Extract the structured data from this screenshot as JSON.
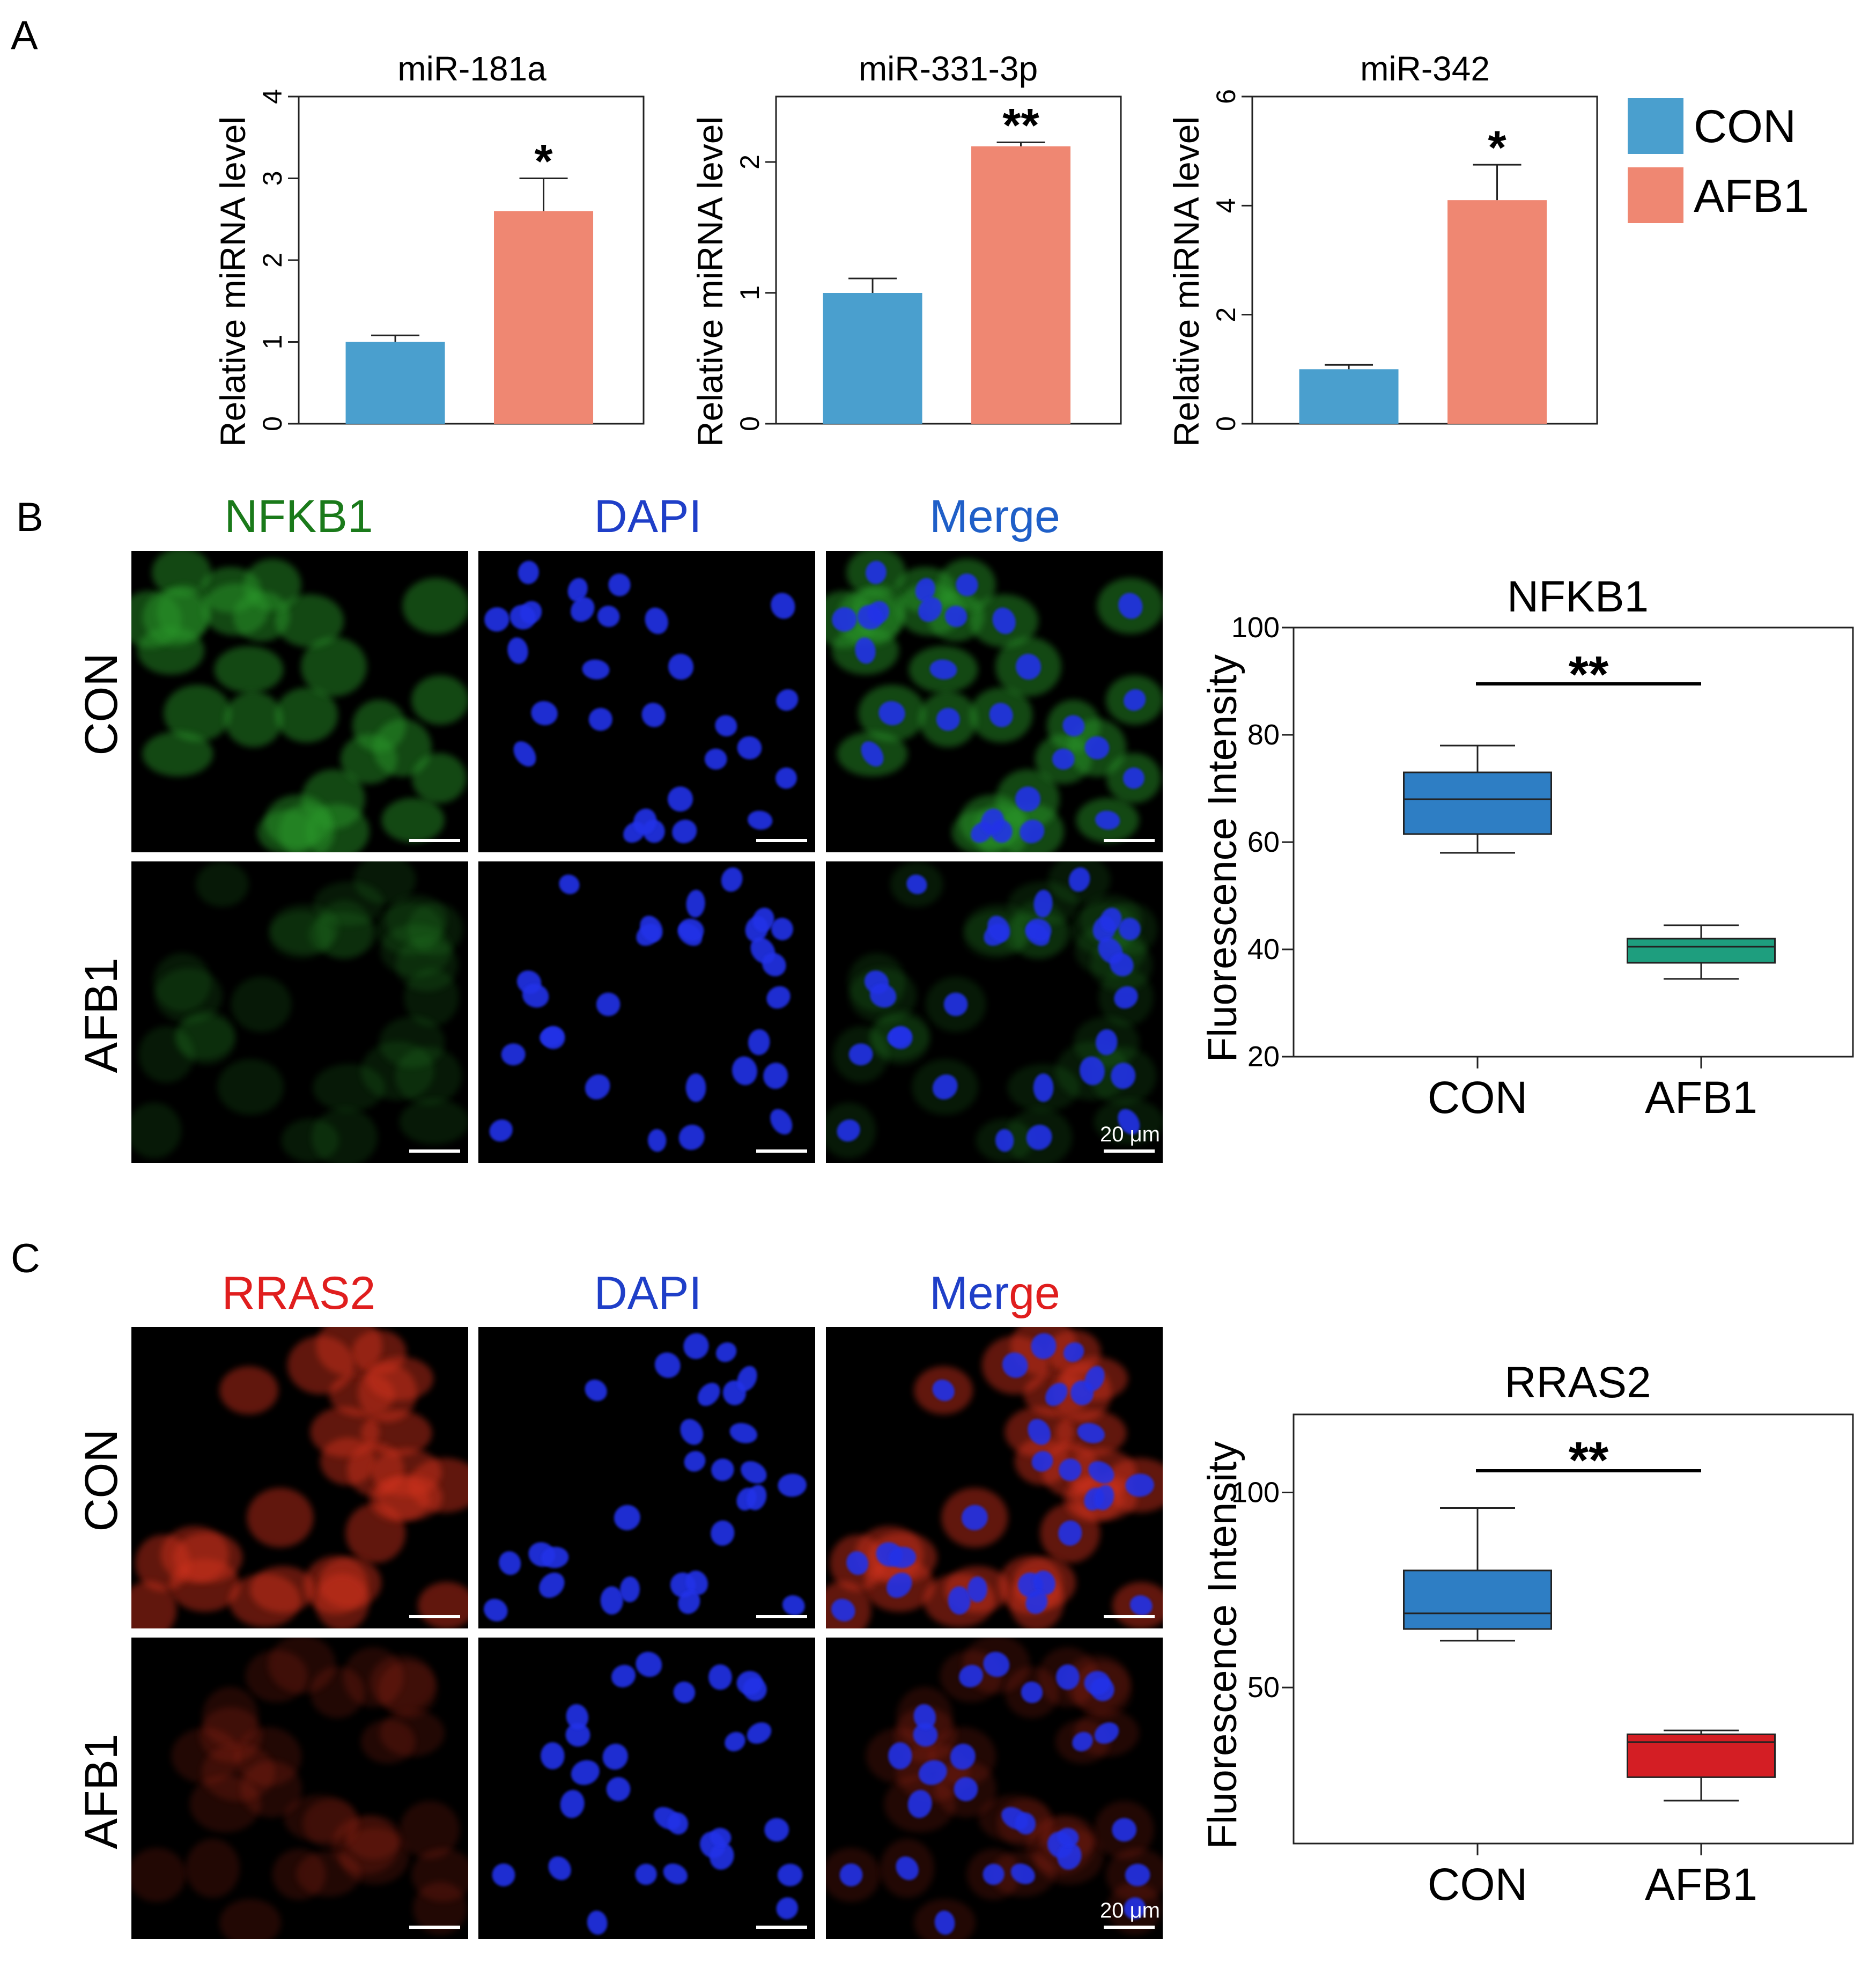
{
  "panel_labels": {
    "A": "A",
    "B": "B",
    "C": "C"
  },
  "legend": {
    "items": [
      {
        "label": "CON",
        "color": "#4A9FCE"
      },
      {
        "label": "AFB1",
        "color": "#EF8772"
      }
    ]
  },
  "micrographs": {
    "B": {
      "channels": [
        {
          "label": "NFKB1",
          "color": "#1A7A1A"
        },
        {
          "label": "DAPI",
          "color": "#1F3FC8"
        },
        {
          "label": "Merge",
          "color": "mixed"
        }
      ],
      "merge_parts": [
        {
          "text": "Merge",
          "color": "#1F5FC8"
        }
      ],
      "rows": [
        "CON",
        "AFB1"
      ],
      "scale_bar": "20 μm",
      "stain": "green"
    },
    "C": {
      "channels": [
        {
          "label": "RRAS2",
          "color": "#E01E1E"
        },
        {
          "label": "DAPI",
          "color": "#1F3FC8"
        },
        {
          "label": "Merge",
          "color": "mixed"
        }
      ],
      "merge_parts": [
        {
          "text": "Mer",
          "color": "#1F3FC8"
        },
        {
          "text": "ge",
          "color": "#E01E1E"
        }
      ],
      "rows": [
        "CON",
        "AFB1"
      ],
      "scale_bar": "20 μm",
      "stain": "red"
    }
  },
  "chart_data": [
    {
      "type": "bar",
      "title": "miR-181a",
      "ylabel": "Relative miRNA level",
      "xlabel": "",
      "categories": [
        "CON",
        "AFB1"
      ],
      "values": [
        1.0,
        2.6
      ],
      "errors": [
        0.08,
        0.4
      ],
      "colors": [
        "#4A9FCE",
        "#EF8772"
      ],
      "ylim": [
        0,
        4
      ],
      "yticks": [
        0,
        1,
        2,
        3,
        4
      ],
      "significance": "*"
    },
    {
      "type": "bar",
      "title": "miR-331-3p",
      "ylabel": "Relative miRNA level",
      "xlabel": "",
      "categories": [
        "CON",
        "AFB1"
      ],
      "values": [
        1.0,
        2.12
      ],
      "errors": [
        0.11,
        0.03
      ],
      "colors": [
        "#4A9FCE",
        "#EF8772"
      ],
      "ylim": [
        0,
        2.5
      ],
      "yticks": [
        0,
        1,
        2
      ],
      "significance": "**"
    },
    {
      "type": "bar",
      "title": "miR-342",
      "ylabel": "Relative miRNA level",
      "xlabel": "",
      "categories": [
        "CON",
        "AFB1"
      ],
      "values": [
        1.0,
        4.1
      ],
      "errors": [
        0.08,
        0.65
      ],
      "colors": [
        "#4A9FCE",
        "#EF8772"
      ],
      "ylim": [
        0,
        6
      ],
      "yticks": [
        0,
        2,
        4,
        6
      ],
      "significance": "*"
    },
    {
      "type": "box",
      "title": "NFKB1",
      "ylabel": "Fluorescence Intensity",
      "xlabel": "",
      "categories": [
        "CON",
        "AFB1"
      ],
      "boxes": [
        {
          "min": 58,
          "q1": 61.5,
          "median": 68,
          "q3": 73,
          "max": 78,
          "color": "#2E7EC4"
        },
        {
          "min": 34.5,
          "q1": 37.5,
          "median": 40.5,
          "q3": 42,
          "max": 44.5,
          "color": "#1E9E7E"
        }
      ],
      "ylim": [
        20,
        100
      ],
      "yticks": [
        20,
        40,
        60,
        80,
        100
      ],
      "significance": "**"
    },
    {
      "type": "box",
      "title": "RRAS2",
      "ylabel": "Fluorescence Intensity",
      "xlabel": "",
      "categories": [
        "CON",
        "AFB1"
      ],
      "boxes": [
        {
          "min": 62,
          "q1": 65,
          "median": 69,
          "q3": 80,
          "max": 96,
          "color": "#2E7EC4"
        },
        {
          "min": 21,
          "q1": 27,
          "median": 36,
          "q3": 38,
          "max": 39,
          "color": "#D41E24"
        }
      ],
      "ylim": [
        10,
        120
      ],
      "yticks": [
        50,
        100
      ],
      "significance": "**"
    }
  ]
}
